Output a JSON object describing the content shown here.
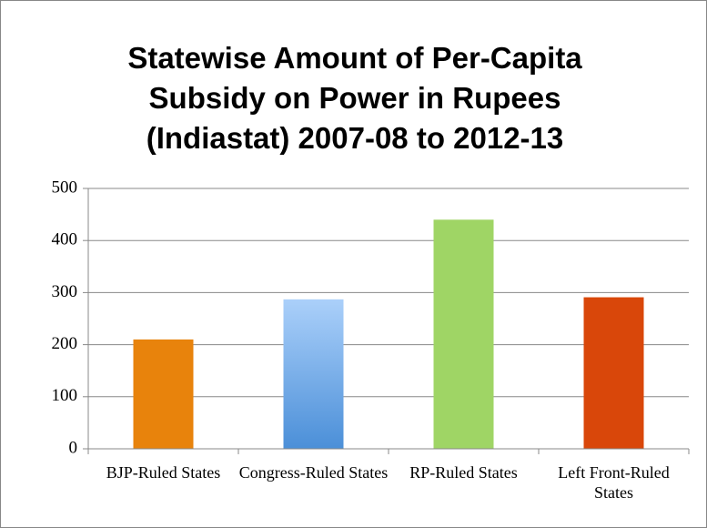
{
  "chart_data": {
    "type": "bar",
    "title": "Statewise Amount of Per-Capita Subsidy on Power in Rupees (Indiastat) 2007-08 to 2012-13",
    "categories": [
      "BJP-Ruled States",
      "Congress-Ruled States",
      "RP-Ruled States",
      "Left Front-Ruled States"
    ],
    "values": [
      210,
      287,
      440,
      291
    ],
    "colors": [
      "#e8830c",
      "#6aa6e6",
      "#9fd565",
      "#d9470a"
    ],
    "ylim": [
      0,
      500
    ],
    "yticks": [
      0,
      100,
      200,
      300,
      400,
      500
    ],
    "grid": true
  }
}
